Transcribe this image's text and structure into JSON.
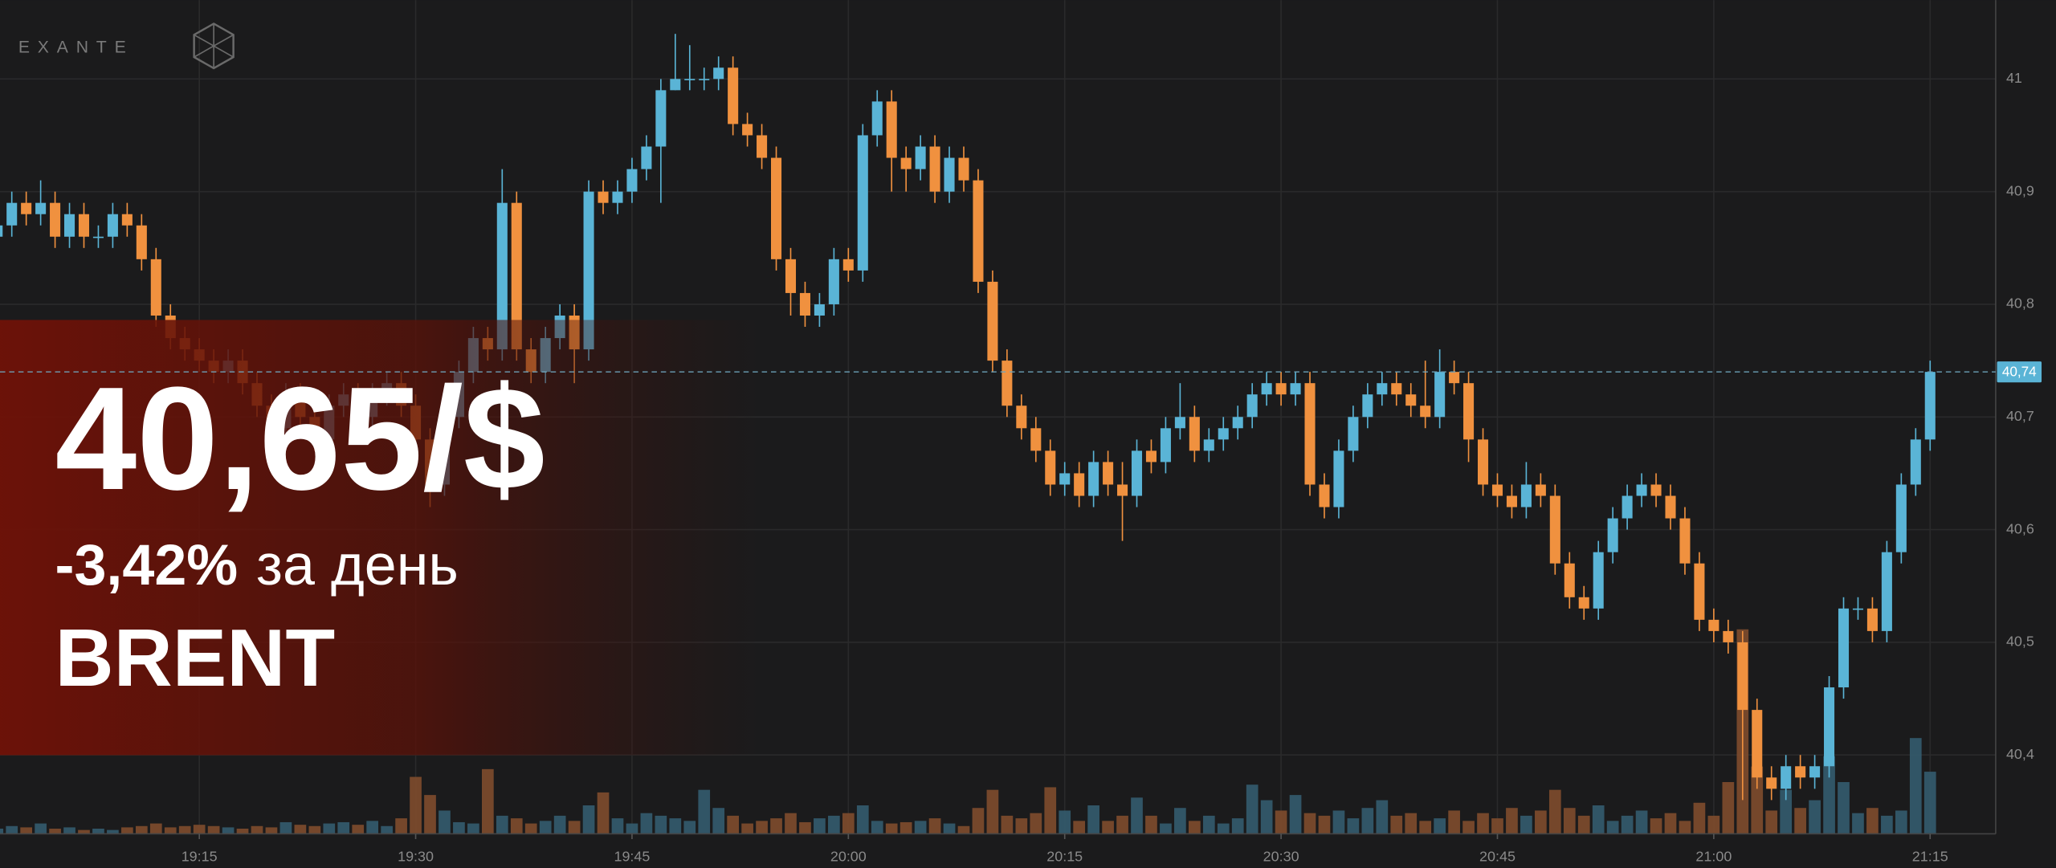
{
  "chart_data": {
    "type": "candlestick",
    "logo": "EXANTE",
    "overlay": {
      "price": "40,65/$",
      "change": "-3,42%",
      "change_note": "за день",
      "symbol": "BRENT"
    },
    "colors": {
      "up": "#5ab4d6",
      "down": "#f0913f",
      "up_volume": "#33586a",
      "down_volume": "#7a4a2c"
    },
    "last_price": {
      "value": 40.74,
      "label": "40,74"
    },
    "ylim": [
      40.33,
      41.07
    ],
    "yticks": [
      {
        "value": 40.4,
        "label": "40,4"
      },
      {
        "value": 40.5,
        "label": "40,5"
      },
      {
        "value": 40.6,
        "label": "40,6"
      },
      {
        "value": 40.7,
        "label": "40,7"
      },
      {
        "value": 40.8,
        "label": "40,8"
      },
      {
        "value": 40.9,
        "label": "40,9"
      },
      41
    ],
    "grid": true,
    "categories": [
      null,
      null,
      null,
      null,
      null,
      null,
      null,
      null,
      null,
      null,
      null,
      null,
      null,
      null,
      "19:15",
      null,
      null,
      null,
      null,
      null,
      null,
      null,
      null,
      null,
      null,
      null,
      null,
      null,
      null,
      "19:30",
      null,
      null,
      null,
      null,
      null,
      null,
      null,
      null,
      null,
      null,
      null,
      null,
      null,
      null,
      "19:45",
      null,
      null,
      null,
      null,
      null,
      null,
      null,
      null,
      null,
      null,
      null,
      null,
      null,
      null,
      "20:00",
      null,
      null,
      null,
      null,
      null,
      null,
      null,
      null,
      null,
      null,
      null,
      null,
      null,
      null,
      "20:15",
      null,
      null,
      null,
      null,
      null,
      null,
      null,
      null,
      null,
      null,
      null,
      null,
      null,
      null,
      "20:30",
      null,
      null,
      null,
      null,
      null,
      null,
      null,
      null,
      null,
      null,
      null,
      null,
      null,
      null,
      "20:45",
      null,
      null,
      null,
      null,
      null,
      null,
      null,
      null,
      null,
      null,
      null,
      null,
      null,
      null,
      "21:00",
      null,
      null,
      null,
      null,
      null,
      null,
      null,
      null,
      null,
      null,
      null,
      null,
      null,
      null,
      "21:15"
    ],
    "open": [
      40.86,
      40.87,
      40.89,
      40.88,
      40.89,
      40.86,
      40.88,
      40.86,
      40.86,
      40.88,
      40.87,
      40.84,
      40.79,
      40.77,
      40.76,
      40.75,
      40.74,
      40.75,
      40.73,
      40.71,
      40.69,
      40.72,
      40.7,
      40.68,
      40.71,
      40.72,
      40.7,
      40.72,
      40.73,
      40.71,
      40.68,
      40.64,
      40.7,
      40.74,
      40.77,
      40.76,
      40.89,
      40.76,
      40.74,
      40.77,
      40.79,
      40.76,
      40.9,
      40.89,
      40.9,
      40.92,
      40.94,
      40.99,
      41.0,
      41.0,
      41.0,
      41.01,
      40.96,
      40.95,
      40.93,
      40.84,
      40.81,
      40.79,
      40.8,
      40.84,
      40.83,
      40.95,
      40.98,
      40.93,
      40.92,
      40.94,
      40.9,
      40.93,
      40.91,
      40.82,
      40.75,
      40.71,
      40.69,
      40.67,
      40.64,
      40.65,
      40.63,
      40.66,
      40.64,
      40.63,
      40.67,
      40.66,
      40.69,
      40.7,
      40.67,
      40.68,
      40.69,
      40.7,
      40.72,
      40.73,
      40.72,
      40.73,
      40.64,
      40.62,
      40.67,
      40.7,
      40.72,
      40.73,
      40.72,
      40.71,
      40.7,
      40.74,
      40.73,
      40.68,
      40.64,
      40.63,
      40.62,
      40.64,
      40.63,
      40.57,
      40.54,
      40.53,
      40.58,
      40.61,
      40.63,
      40.64,
      40.63,
      40.61,
      40.57,
      40.52,
      40.51,
      40.5,
      40.44,
      40.38,
      40.37,
      40.39,
      40.38,
      40.39,
      40.46,
      40.53,
      40.53,
      40.51,
      40.58,
      40.64,
      40.68
    ],
    "high": [
      40.88,
      40.9,
      40.9,
      40.91,
      40.9,
      40.89,
      40.89,
      40.87,
      40.89,
      40.89,
      40.88,
      40.85,
      40.8,
      40.78,
      40.77,
      40.76,
      40.76,
      40.76,
      40.74,
      40.72,
      40.73,
      40.73,
      40.71,
      40.72,
      40.73,
      40.73,
      40.73,
      40.74,
      40.74,
      40.72,
      40.69,
      40.71,
      40.75,
      40.78,
      40.78,
      40.92,
      40.9,
      40.77,
      40.78,
      40.8,
      40.8,
      40.91,
      40.91,
      40.91,
      40.93,
      40.95,
      41.0,
      41.04,
      41.03,
      41.01,
      41.02,
      41.02,
      40.97,
      40.96,
      40.94,
      40.85,
      40.82,
      40.81,
      40.85,
      40.85,
      40.96,
      40.99,
      40.99,
      40.94,
      40.95,
      40.95,
      40.94,
      40.94,
      40.92,
      40.83,
      40.76,
      40.72,
      40.7,
      40.68,
      40.66,
      40.66,
      40.67,
      40.67,
      40.66,
      40.68,
      40.68,
      40.7,
      40.73,
      40.71,
      40.69,
      40.7,
      40.71,
      40.73,
      40.74,
      40.74,
      40.74,
      40.74,
      40.65,
      40.68,
      40.71,
      40.73,
      40.74,
      40.74,
      40.73,
      40.75,
      40.76,
      40.75,
      40.74,
      40.69,
      40.65,
      40.64,
      40.66,
      40.65,
      40.64,
      40.58,
      40.55,
      40.59,
      40.62,
      40.64,
      40.65,
      40.65,
      40.64,
      40.62,
      40.58,
      40.53,
      40.52,
      40.51,
      40.45,
      40.39,
      40.4,
      40.4,
      40.4,
      40.47,
      40.54,
      40.54,
      40.54,
      40.59,
      40.65,
      40.69,
      40.75
    ],
    "low": [
      40.85,
      40.86,
      40.87,
      40.87,
      40.85,
      40.85,
      40.85,
      40.85,
      40.85,
      40.86,
      40.83,
      40.78,
      40.76,
      40.75,
      40.74,
      40.73,
      40.73,
      40.72,
      40.7,
      40.68,
      40.68,
      40.69,
      40.67,
      40.67,
      40.7,
      40.69,
      40.69,
      40.71,
      40.7,
      40.67,
      40.62,
      40.63,
      40.69,
      40.73,
      40.75,
      40.75,
      40.75,
      40.73,
      40.73,
      40.76,
      40.73,
      40.75,
      40.88,
      40.88,
      40.89,
      40.91,
      40.89,
      40.99,
      40.99,
      40.99,
      40.99,
      40.95,
      40.94,
      40.92,
      40.83,
      40.79,
      40.78,
      40.78,
      40.79,
      40.82,
      40.82,
      40.94,
      40.9,
      40.9,
      40.91,
      40.89,
      40.89,
      40.9,
      40.81,
      40.74,
      40.7,
      40.68,
      40.66,
      40.63,
      40.63,
      40.62,
      40.62,
      40.63,
      40.59,
      40.62,
      40.65,
      40.65,
      40.68,
      40.66,
      40.66,
      40.67,
      40.68,
      40.69,
      40.71,
      40.71,
      40.71,
      40.63,
      40.61,
      40.61,
      40.66,
      40.69,
      40.71,
      40.71,
      40.7,
      40.69,
      40.69,
      40.72,
      40.66,
      40.63,
      40.62,
      40.61,
      40.61,
      40.62,
      40.56,
      40.53,
      40.52,
      40.52,
      40.57,
      40.6,
      40.62,
      40.62,
      40.6,
      40.56,
      40.51,
      40.5,
      40.49,
      40.36,
      40.37,
      40.36,
      40.36,
      40.37,
      40.37,
      40.38,
      40.45,
      40.52,
      40.5,
      40.5,
      40.57,
      40.63,
      40.67
    ],
    "close": [
      40.87,
      40.89,
      40.88,
      40.89,
      40.86,
      40.88,
      40.86,
      40.86,
      40.88,
      40.87,
      40.84,
      40.79,
      40.77,
      40.76,
      40.75,
      40.74,
      40.75,
      40.73,
      40.71,
      40.69,
      40.72,
      40.7,
      40.68,
      40.71,
      40.72,
      40.7,
      40.72,
      40.73,
      40.71,
      40.68,
      40.64,
      40.7,
      40.74,
      40.77,
      40.76,
      40.89,
      40.76,
      40.74,
      40.77,
      40.79,
      40.76,
      40.9,
      40.89,
      40.9,
      40.92,
      40.94,
      40.99,
      41.0,
      41.0,
      41.0,
      41.01,
      40.96,
      40.95,
      40.93,
      40.84,
      40.81,
      40.79,
      40.8,
      40.84,
      40.83,
      40.95,
      40.98,
      40.93,
      40.92,
      40.94,
      40.9,
      40.93,
      40.91,
      40.82,
      40.75,
      40.71,
      40.69,
      40.67,
      40.64,
      40.65,
      40.63,
      40.66,
      40.64,
      40.63,
      40.67,
      40.66,
      40.69,
      40.7,
      40.67,
      40.68,
      40.69,
      40.7,
      40.72,
      40.73,
      40.72,
      40.73,
      40.64,
      40.62,
      40.67,
      40.7,
      40.72,
      40.73,
      40.72,
      40.71,
      40.7,
      40.74,
      40.73,
      40.68,
      40.64,
      40.63,
      40.62,
      40.64,
      40.63,
      40.57,
      40.54,
      40.53,
      40.58,
      40.61,
      40.63,
      40.64,
      40.63,
      40.61,
      40.57,
      40.52,
      40.51,
      40.5,
      40.44,
      40.38,
      40.37,
      40.39,
      40.38,
      40.39,
      40.46,
      40.53,
      40.53,
      40.51,
      40.58,
      40.64,
      40.68,
      40.74
    ],
    "volume": [
      4,
      6,
      5,
      8,
      4,
      5,
      3,
      4,
      3,
      5,
      6,
      8,
      5,
      6,
      7,
      6,
      5,
      4,
      6,
      5,
      9,
      7,
      6,
      8,
      9,
      7,
      10,
      6,
      12,
      44,
      30,
      18,
      9,
      8,
      50,
      14,
      12,
      8,
      10,
      14,
      10,
      22,
      32,
      12,
      8,
      16,
      14,
      12,
      10,
      34,
      20,
      14,
      8,
      10,
      12,
      16,
      9,
      12,
      14,
      16,
      22,
      10,
      8,
      9,
      10,
      12,
      8,
      6,
      20,
      34,
      14,
      12,
      16,
      36,
      18,
      10,
      22,
      10,
      14,
      28,
      14,
      8,
      20,
      10,
      14,
      8,
      12,
      38,
      26,
      18,
      30,
      16,
      14,
      18,
      12,
      20,
      26,
      14,
      16,
      10,
      12,
      18,
      10,
      16,
      12,
      20,
      14,
      18,
      34,
      20,
      14,
      22,
      10,
      14,
      18,
      12,
      16,
      10,
      24,
      14,
      40,
      158,
      52,
      18,
      34,
      20,
      26,
      60,
      40,
      16,
      20,
      14,
      18,
      74,
      48
    ]
  }
}
